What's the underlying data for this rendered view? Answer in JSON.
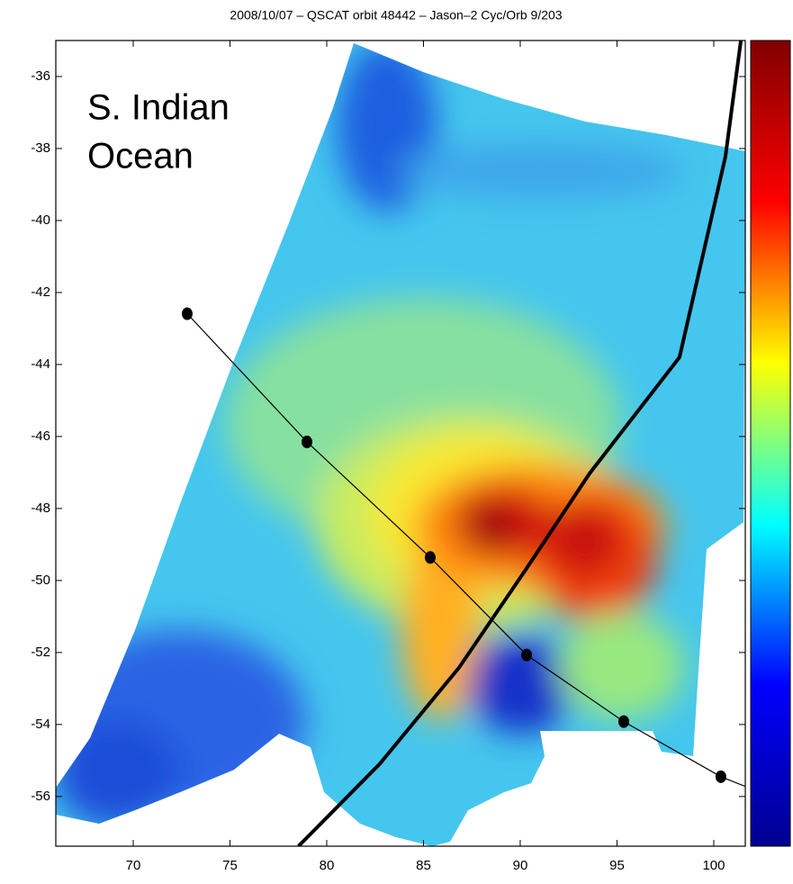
{
  "chart_data": {
    "type": "swath_map",
    "title": "2008/10/07 – QSCAT orbit 48442 – Jason–2 Cyc/Orb 9/203",
    "annotation": [
      "S. Indian",
      "Ocean"
    ],
    "xlim": [
      66,
      101.63
    ],
    "ylim": [
      -57.38,
      -35.0
    ],
    "xticks": [
      70,
      75,
      80,
      85,
      90,
      95,
      100
    ],
    "yticks": [
      -56,
      -54,
      -52,
      -50,
      -48,
      -46,
      -44,
      -42,
      -40,
      -38,
      -36
    ],
    "series": [
      {
        "color": "#000000",
        "width": 1.2,
        "markers": true,
        "x": [
          72.79,
          78.98,
          85.35,
          90.33,
          95.35,
          100.37,
          101.63
        ],
        "values": [
          -42.59,
          -46.15,
          -49.36,
          -52.07,
          -53.92,
          -55.45,
          -55.72
        ]
      },
      {
        "color": "#000000",
        "width": 4,
        "markers": false,
        "x": [
          78.54,
          82.73,
          86.84,
          90.33,
          93.58,
          98.23,
          100.6,
          101.4
        ],
        "values": [
          -57.38,
          -55.1,
          -52.42,
          -49.66,
          -47.03,
          -43.8,
          -38.23,
          -35.0
        ]
      }
    ],
    "colorbar_colors": [
      "#00008f",
      "#0000ff",
      "#00ffff",
      "#ffff00",
      "#ff0000",
      "#800000"
    ]
  }
}
